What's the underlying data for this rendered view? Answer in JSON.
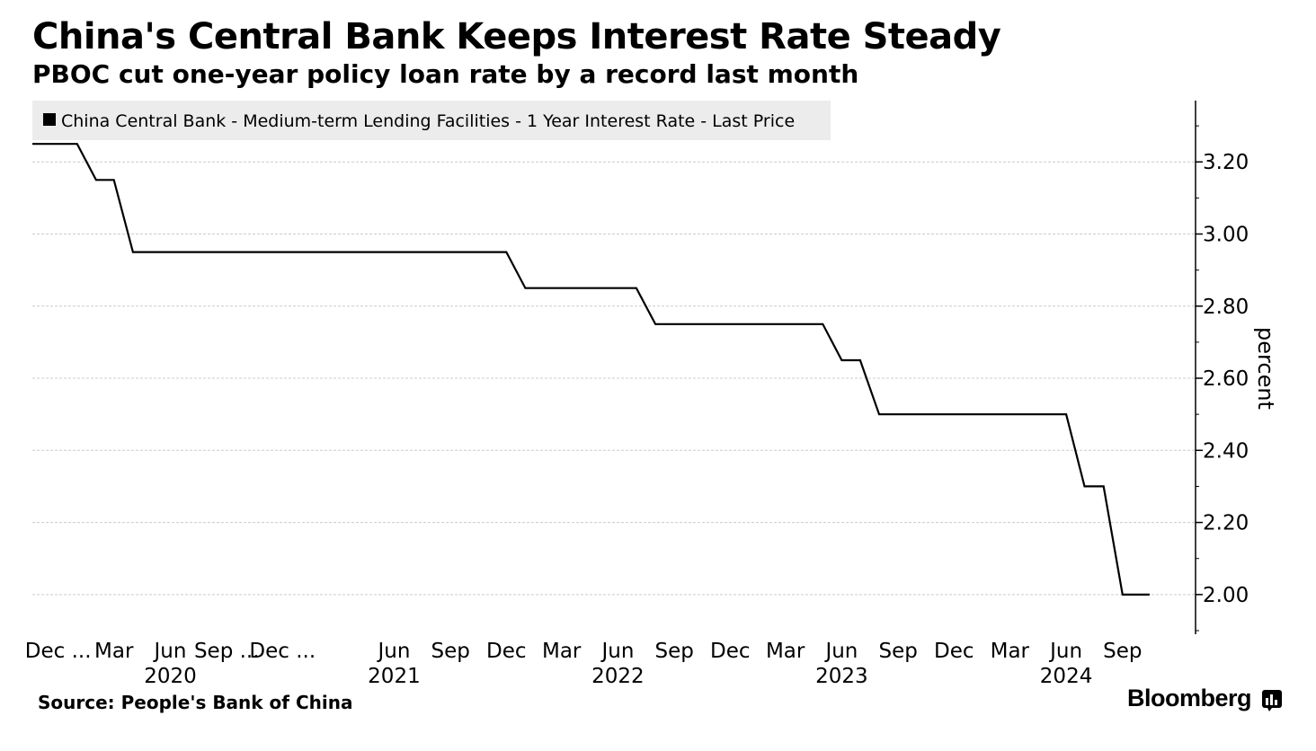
{
  "header": {
    "title": "China's Central Bank Keeps Interest Rate Steady",
    "subtitle": "PBOC cut one-year policy loan rate by a record last month"
  },
  "footer": {
    "source": "Source: People's Bank of China",
    "brand": "Bloomberg"
  },
  "colors": {
    "line": "#000000",
    "grid": "#cccccc",
    "legend_bg": "#ececec"
  },
  "chart_data": {
    "type": "line",
    "title": "China's Central Bank Keeps Interest Rate Steady",
    "subtitle": "PBOC cut one-year policy loan rate by a record last month",
    "legend": [
      "China Central Bank - Medium-term Lending Facilities - 1 Year Interest Rate - Last Price"
    ],
    "legend_position": "top-left",
    "ylabel": "percent",
    "y_axis_side": "right",
    "ylim": [
      1.89,
      3.37
    ],
    "yticks": [
      2.0,
      2.2,
      2.4,
      2.6,
      2.8,
      3.0,
      3.2
    ],
    "ytick_labels": [
      "2.00",
      "2.20",
      "2.40",
      "2.60",
      "2.80",
      "3.00",
      "3.20"
    ],
    "grid": true,
    "xlim": [
      "2019-10-20",
      "2024-11-15"
    ],
    "x_ticks": [
      {
        "date": "2019-12-01",
        "label": "Dec ..."
      },
      {
        "date": "2020-03-01",
        "label": "Mar"
      },
      {
        "date": "2020-06-01",
        "label": "Jun"
      },
      {
        "date": "2020-09-01",
        "label": "Sep ..."
      },
      {
        "date": "2020-12-01",
        "label": "Dec ..."
      },
      {
        "date": "2021-06-01",
        "label": "Jun"
      },
      {
        "date": "2021-09-01",
        "label": "Sep"
      },
      {
        "date": "2021-12-01",
        "label": "Dec"
      },
      {
        "date": "2022-03-01",
        "label": "Mar"
      },
      {
        "date": "2022-06-01",
        "label": "Jun"
      },
      {
        "date": "2022-09-01",
        "label": "Sep"
      },
      {
        "date": "2022-12-01",
        "label": "Dec"
      },
      {
        "date": "2023-03-01",
        "label": "Mar"
      },
      {
        "date": "2023-06-01",
        "label": "Jun"
      },
      {
        "date": "2023-09-01",
        "label": "Sep"
      },
      {
        "date": "2023-12-01",
        "label": "Dec"
      },
      {
        "date": "2024-03-01",
        "label": "Mar"
      },
      {
        "date": "2024-06-01",
        "label": "Jun"
      },
      {
        "date": "2024-09-01",
        "label": "Sep"
      }
    ],
    "year_labels": [
      {
        "date": "2020-06-01",
        "label": "2020"
      },
      {
        "date": "2021-06-01",
        "label": "2021"
      },
      {
        "date": "2022-06-01",
        "label": "2022"
      },
      {
        "date": "2023-06-01",
        "label": "2023"
      },
      {
        "date": "2024-06-01",
        "label": "2024"
      }
    ],
    "series": [
      {
        "name": "China Central Bank - Medium-term Lending Facilities - 1 Year Interest Rate - Last Price",
        "x": [
          "2019-10-20",
          "2020-01-01",
          "2020-02-01",
          "2020-03-01",
          "2020-04-01",
          "2021-12-01",
          "2022-01-01",
          "2022-07-01",
          "2022-08-01",
          "2023-05-01",
          "2023-06-01",
          "2023-07-01",
          "2023-08-01",
          "2024-06-01",
          "2024-07-01",
          "2024-08-01",
          "2024-09-01",
          "2024-10-15"
        ],
        "values": [
          3.25,
          3.25,
          3.15,
          3.15,
          2.95,
          2.95,
          2.85,
          2.85,
          2.75,
          2.75,
          2.65,
          2.65,
          2.5,
          2.5,
          2.3,
          2.3,
          2.0,
          2.0
        ]
      }
    ]
  }
}
